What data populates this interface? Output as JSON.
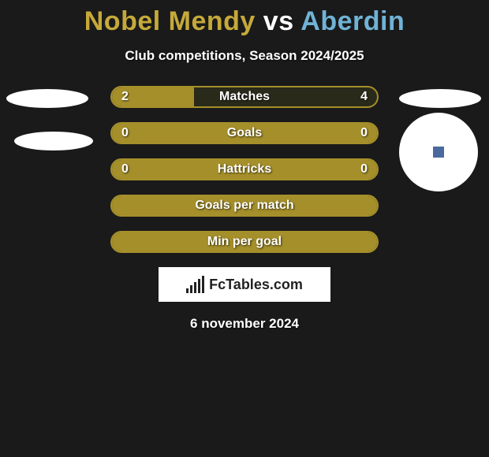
{
  "title": {
    "player1": "Nobel Mendy",
    "vs": "vs",
    "player2": "Aberdin"
  },
  "subtitle": "Club competitions, Season 2024/2025",
  "colors": {
    "player1": "#c5a93a",
    "player2": "#70b3d6",
    "bar_fill": "#a58f2a",
    "bar_border": "#a58f2a",
    "background": "#1a1a1a"
  },
  "bars": [
    {
      "label": "Matches",
      "left": "2",
      "right": "4",
      "fill_left_pct": 31,
      "fill_right_pct": 0
    },
    {
      "label": "Goals",
      "left": "0",
      "right": "0",
      "fill_left_pct": 100,
      "fill_right_pct": 0
    },
    {
      "label": "Hattricks",
      "left": "0",
      "right": "0",
      "fill_left_pct": 100,
      "fill_right_pct": 0
    },
    {
      "label": "Goals per match",
      "left": "",
      "right": "",
      "fill_left_pct": 100,
      "fill_right_pct": 0
    },
    {
      "label": "Min per goal",
      "left": "",
      "right": "",
      "fill_left_pct": 100,
      "fill_right_pct": 0
    }
  ],
  "logo": "FcTables.com",
  "date": "6 november 2024"
}
